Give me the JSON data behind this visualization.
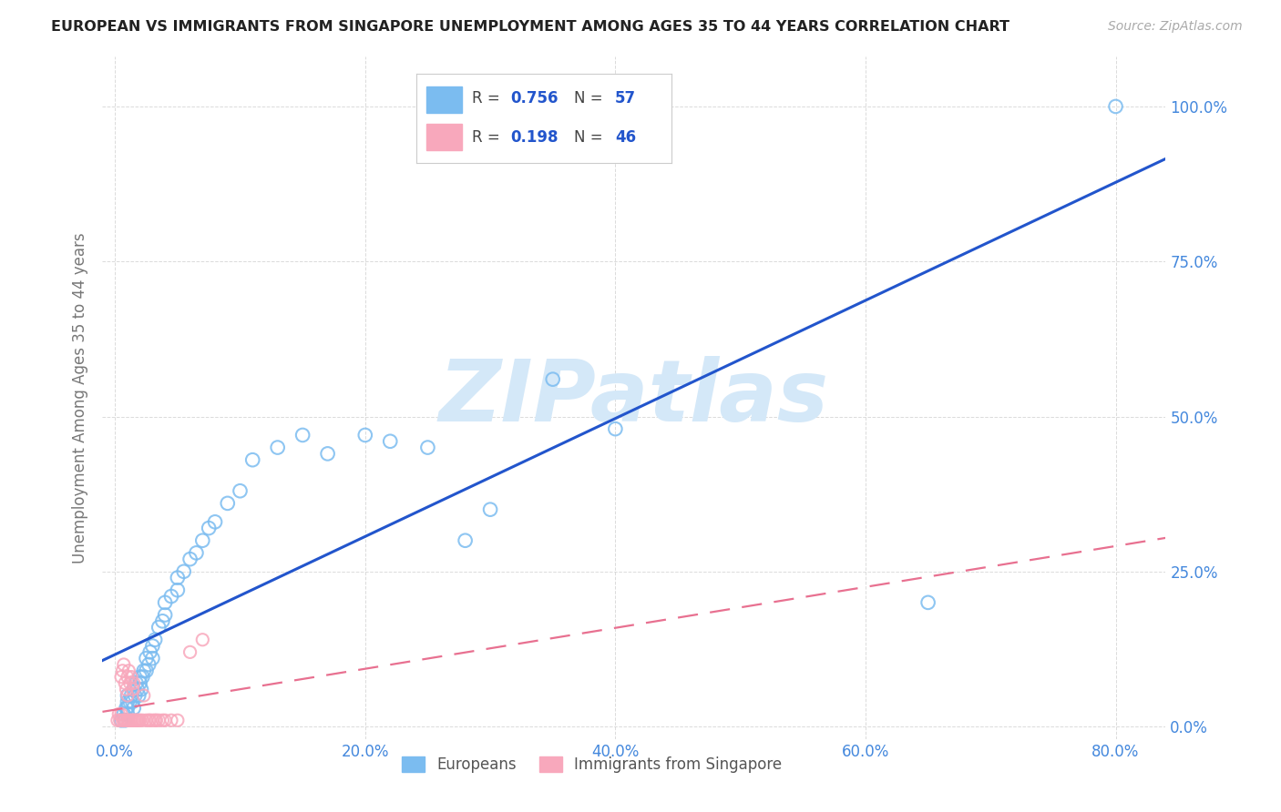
{
  "title": "EUROPEAN VS IMMIGRANTS FROM SINGAPORE UNEMPLOYMENT AMONG AGES 35 TO 44 YEARS CORRELATION CHART",
  "source": "Source: ZipAtlas.com",
  "ylabel": "Unemployment Among Ages 35 to 44 years",
  "watermark": "ZIPatlas",
  "legend_r1": "0.756",
  "legend_n1": "57",
  "legend_r2": "0.198",
  "legend_n2": "46",
  "blue_scatter_color": "#7bbcf0",
  "pink_scatter_color": "#f8a8bc",
  "blue_line_color": "#2255cc",
  "pink_line_color": "#e87090",
  "title_color": "#222222",
  "axis_tick_color": "#4488dd",
  "watermark_color": "#d4e8f8",
  "background_color": "#ffffff",
  "grid_color": "#cccccc",
  "xlim": [
    -0.01,
    0.84
  ],
  "ylim": [
    -0.02,
    1.08
  ],
  "xticks": [
    0.0,
    0.2,
    0.4,
    0.6,
    0.8
  ],
  "yticks": [
    0.0,
    0.25,
    0.5,
    0.75,
    1.0
  ],
  "xticklabels": [
    "0.0%",
    "20.0%",
    "40.0%",
    "60.0%",
    "80.0%"
  ],
  "yticklabels": [
    "0.0%",
    "25.0%",
    "50.0%",
    "75.0%",
    "100.0%"
  ],
  "blue_scatter_x": [
    0.005,
    0.007,
    0.008,
    0.009,
    0.01,
    0.01,
    0.01,
    0.01,
    0.012,
    0.013,
    0.014,
    0.015,
    0.015,
    0.016,
    0.017,
    0.018,
    0.019,
    0.02,
    0.02,
    0.021,
    0.022,
    0.023,
    0.025,
    0.025,
    0.027,
    0.028,
    0.03,
    0.03,
    0.032,
    0.035,
    0.038,
    0.04,
    0.04,
    0.045,
    0.05,
    0.05,
    0.055,
    0.06,
    0.065,
    0.07,
    0.075,
    0.08,
    0.09,
    0.1,
    0.11,
    0.13,
    0.15,
    0.17,
    0.2,
    0.22,
    0.25,
    0.28,
    0.3,
    0.35,
    0.4,
    0.65,
    0.8
  ],
  "blue_scatter_y": [
    0.01,
    0.02,
    0.01,
    0.03,
    0.02,
    0.04,
    0.05,
    0.03,
    0.04,
    0.05,
    0.04,
    0.03,
    0.06,
    0.05,
    0.07,
    0.06,
    0.05,
    0.07,
    0.08,
    0.06,
    0.08,
    0.09,
    0.09,
    0.11,
    0.1,
    0.12,
    0.11,
    0.13,
    0.14,
    0.16,
    0.17,
    0.18,
    0.2,
    0.21,
    0.22,
    0.24,
    0.25,
    0.27,
    0.28,
    0.3,
    0.32,
    0.33,
    0.36,
    0.38,
    0.43,
    0.45,
    0.47,
    0.44,
    0.47,
    0.46,
    0.45,
    0.3,
    0.35,
    0.56,
    0.48,
    0.2,
    1.0
  ],
  "pink_scatter_x": [
    0.002,
    0.003,
    0.004,
    0.005,
    0.005,
    0.006,
    0.006,
    0.007,
    0.007,
    0.008,
    0.008,
    0.009,
    0.009,
    0.01,
    0.01,
    0.01,
    0.011,
    0.011,
    0.012,
    0.012,
    0.013,
    0.013,
    0.014,
    0.014,
    0.015,
    0.015,
    0.016,
    0.017,
    0.018,
    0.019,
    0.02,
    0.022,
    0.023,
    0.025,
    0.027,
    0.028,
    0.03,
    0.032,
    0.033,
    0.035,
    0.038,
    0.04,
    0.045,
    0.05,
    0.06,
    0.07
  ],
  "pink_scatter_y": [
    0.01,
    0.02,
    0.01,
    0.02,
    0.08,
    0.01,
    0.09,
    0.01,
    0.1,
    0.01,
    0.07,
    0.01,
    0.06,
    0.01,
    0.05,
    0.08,
    0.01,
    0.09,
    0.01,
    0.07,
    0.01,
    0.08,
    0.01,
    0.06,
    0.01,
    0.07,
    0.01,
    0.01,
    0.01,
    0.01,
    0.01,
    0.01,
    0.05,
    0.01,
    0.01,
    0.01,
    0.01,
    0.01,
    0.01,
    0.01,
    0.01,
    0.01,
    0.01,
    0.01,
    0.12,
    0.14
  ],
  "legend_labels": [
    "Europeans",
    "Immigrants from Singapore"
  ]
}
